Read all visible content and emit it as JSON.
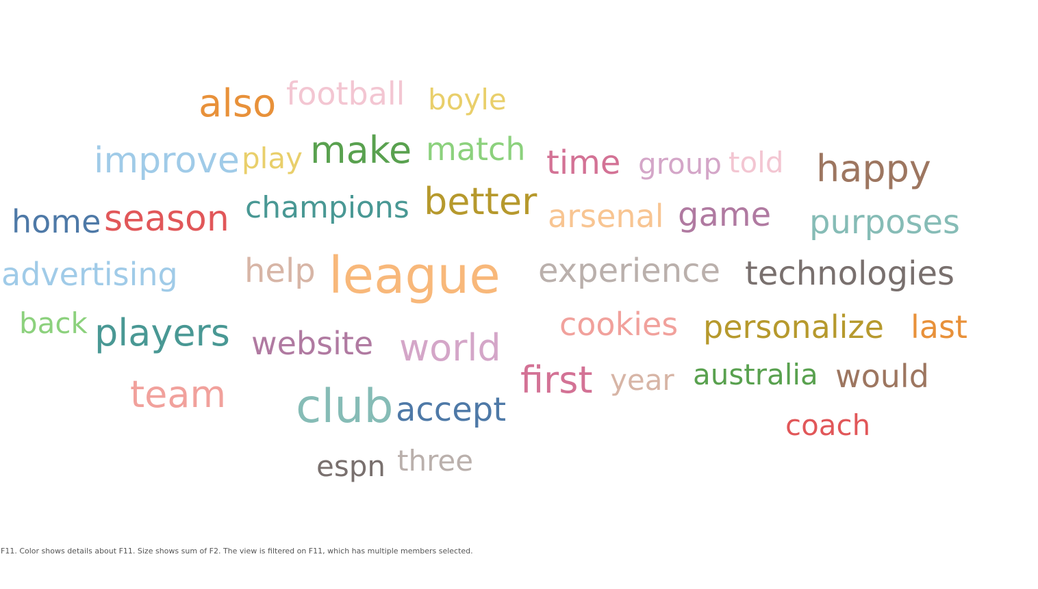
{
  "chart_data": {
    "type": "word_cloud",
    "caption": "F11.  Color shows details about F11.  Size shows sum of F2. The view is filtered on F11, which has multiple members selected.",
    "words": [
      {
        "text": "league",
        "color": "#f8b87a",
        "size_rank": 1
      },
      {
        "text": "club",
        "color": "#86bcb6",
        "size_rank": 2
      },
      {
        "text": "also",
        "color": "#e8913a",
        "size_rank": 3
      },
      {
        "text": "make",
        "color": "#59a14f",
        "size_rank": 4
      },
      {
        "text": "better",
        "color": "#b6992d",
        "size_rank": 5
      },
      {
        "text": "happy",
        "color": "#9d7660",
        "size_rank": 6
      },
      {
        "text": "players",
        "color": "#499894",
        "size_rank": 7
      },
      {
        "text": "team",
        "color": "#f1a19c",
        "size_rank": 8
      },
      {
        "text": "world",
        "color": "#d4a6c8",
        "size_rank": 9
      },
      {
        "text": "first",
        "color": "#d37295",
        "size_rank": 10
      },
      {
        "text": "season",
        "color": "#e15759",
        "size_rank": 11
      },
      {
        "text": "improve",
        "color": "#a0cbe8",
        "size_rank": 12
      },
      {
        "text": "experience",
        "color": "#bab0ac",
        "size_rank": 13
      },
      {
        "text": "technologies",
        "color": "#79706e",
        "size_rank": 14
      },
      {
        "text": "accept",
        "color": "#4e79a7",
        "size_rank": 15
      },
      {
        "text": "help",
        "color": "#d7b5a6",
        "size_rank": 16
      },
      {
        "text": "time",
        "color": "#d37295",
        "size_rank": 17
      },
      {
        "text": "game",
        "color": "#b07aa1",
        "size_rank": 18
      },
      {
        "text": "purposes",
        "color": "#86bcb6",
        "size_rank": 19
      },
      {
        "text": "arsenal",
        "color": "#f8c592",
        "size_rank": 20
      },
      {
        "text": "advertising",
        "color": "#a0cbe8",
        "size_rank": 21
      },
      {
        "text": "website",
        "color": "#b07aa1",
        "size_rank": 22
      },
      {
        "text": "home",
        "color": "#4e79a7",
        "size_rank": 23
      },
      {
        "text": "match",
        "color": "#8cd17d",
        "size_rank": 24
      },
      {
        "text": "champions",
        "color": "#499894",
        "size_rank": 25
      },
      {
        "text": "personalize",
        "color": "#b6992d",
        "size_rank": 26
      },
      {
        "text": "last",
        "color": "#e8913a",
        "size_rank": 27
      },
      {
        "text": "cookies",
        "color": "#f1a19c",
        "size_rank": 28
      },
      {
        "text": "would",
        "color": "#9d7660",
        "size_rank": 29
      },
      {
        "text": "football",
        "color": "#f3c6d2",
        "size_rank": 30
      },
      {
        "text": "boyle",
        "color": "#e9cf6b",
        "size_rank": 31
      },
      {
        "text": "play",
        "color": "#e9cf6b",
        "size_rank": 32
      },
      {
        "text": "year",
        "color": "#d7b5a6",
        "size_rank": 33
      },
      {
        "text": "australia",
        "color": "#59a14f",
        "size_rank": 34
      },
      {
        "text": "coach",
        "color": "#e15759",
        "size_rank": 35
      },
      {
        "text": "back",
        "color": "#8cd17d",
        "size_rank": 36
      },
      {
        "text": "group",
        "color": "#d4a6c8",
        "size_rank": 37
      },
      {
        "text": "told",
        "color": "#f3c6d2",
        "size_rank": 38
      },
      {
        "text": "espn",
        "color": "#79706e",
        "size_rank": 39
      },
      {
        "text": "three",
        "color": "#bab0ac",
        "size_rank": 40
      }
    ]
  }
}
